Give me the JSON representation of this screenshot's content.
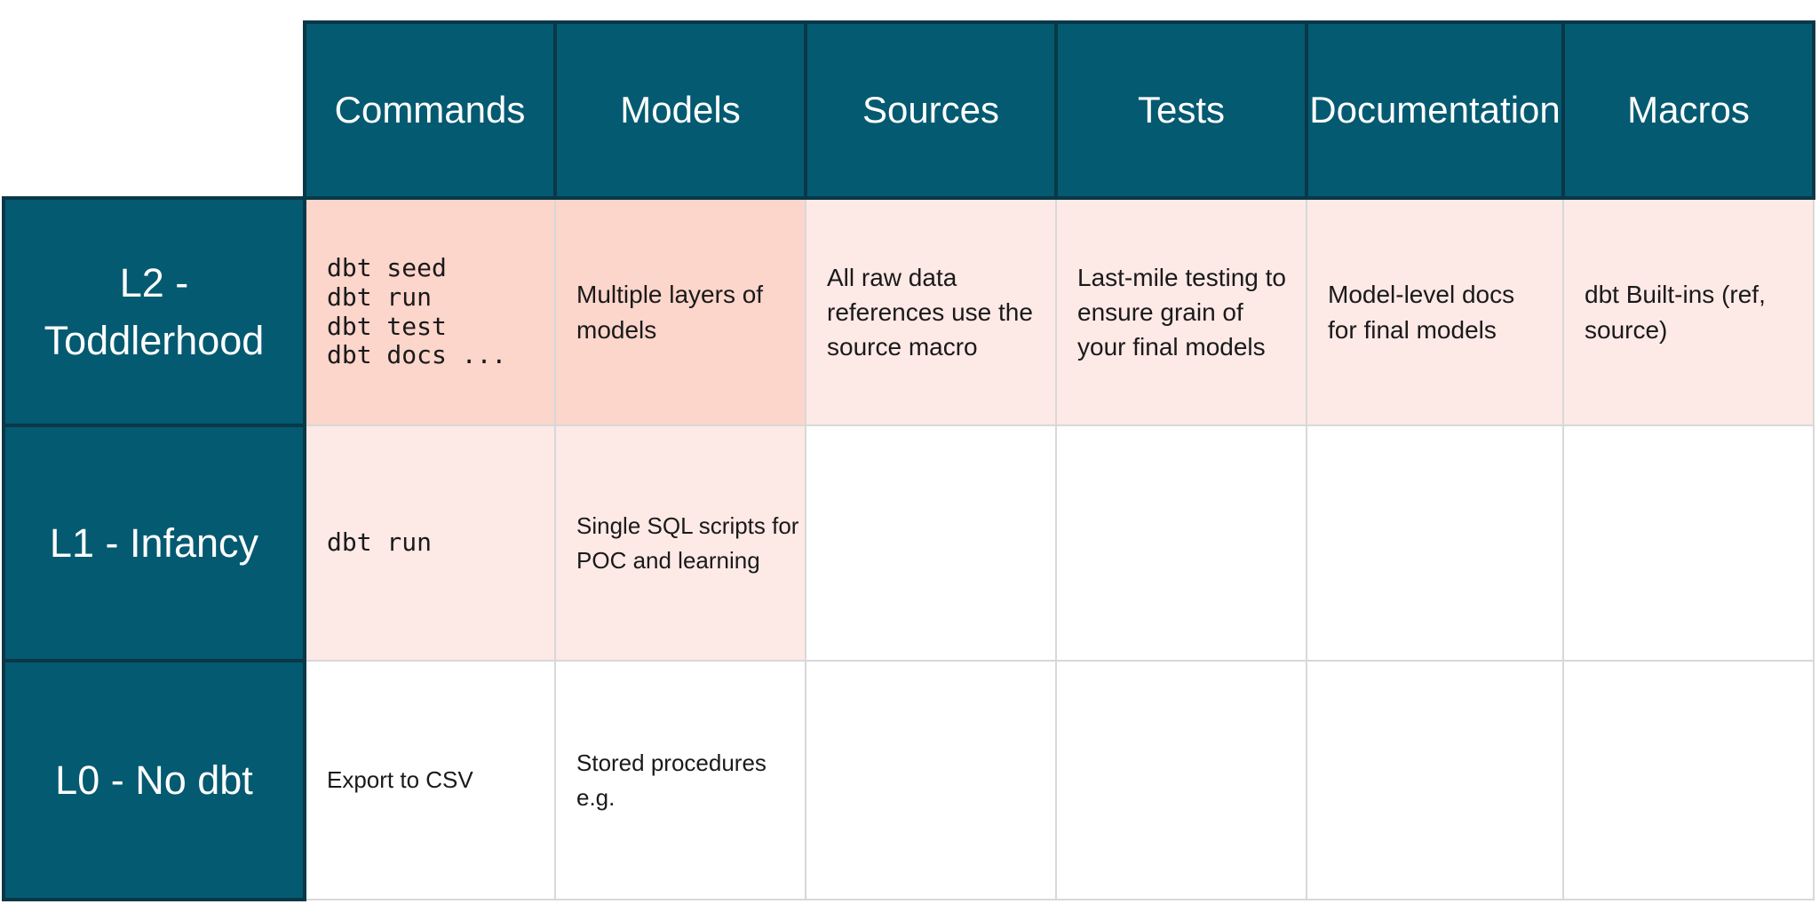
{
  "colors": {
    "teal": "#045A71",
    "teal_border": "#093848",
    "pink_strong": "#FCD5CB",
    "pink_light": "#FDE9E6",
    "grid_line": "#D8D8D8",
    "cell_text": "#1A1A1A",
    "header_text": "#FFFFFF",
    "page_bg": "#FFFFFF"
  },
  "chart_data": {
    "type": "table",
    "columns": [
      "Commands",
      "Models",
      "Sources",
      "Tests",
      "Documentation",
      "Macros"
    ],
    "rows": [
      {
        "label": "L2 -\nToddlerhood",
        "cells": [
          "dbt seed\ndbt run\ndbt test\ndbt docs ...",
          "Multiple layers of\nmodels",
          "All raw data\nreferences use the\nsource macro",
          "Last-mile testing to\nensure grain of\nyour final models",
          "Model-level docs\nfor final models",
          "dbt Built-ins (ref,\nsource)"
        ]
      },
      {
        "label": "L1 - Infancy",
        "cells": [
          "dbt run",
          "Single SQL scripts for\nPOC and learning",
          "",
          "",
          "",
          ""
        ]
      },
      {
        "label": "L0 - No dbt",
        "cells": [
          "Export to CSV",
          "Stored procedures\ne.g.",
          "",
          "",
          "",
          ""
        ]
      }
    ]
  }
}
